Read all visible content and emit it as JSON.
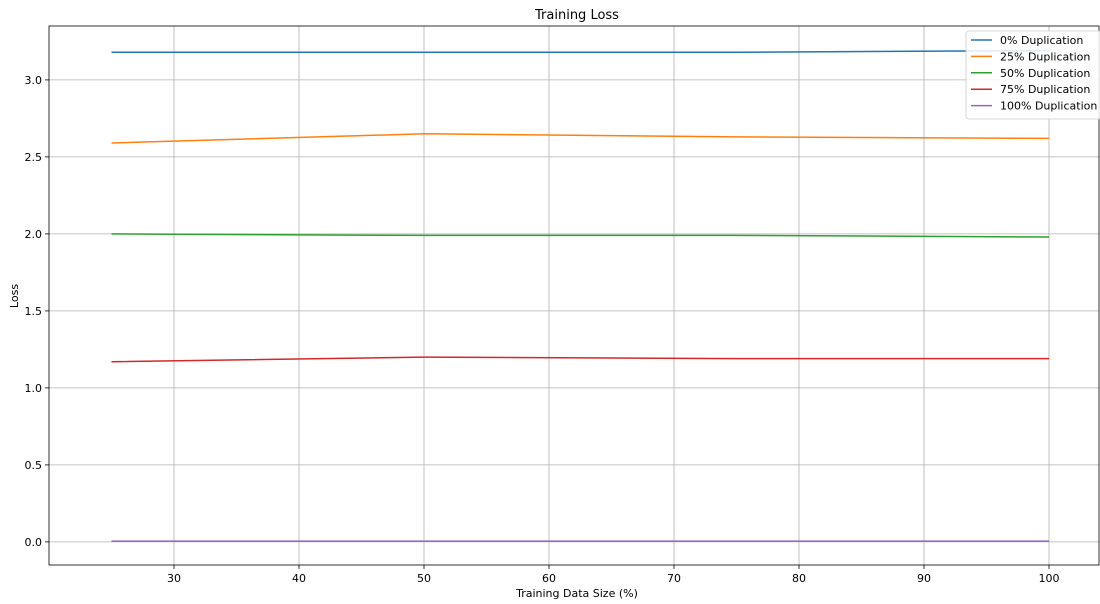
{
  "chart_data": {
    "type": "line",
    "title": "Training Loss",
    "xlabel": "Training Data Size (%)",
    "ylabel": "Loss",
    "xlim": [
      20,
      104
    ],
    "ylim": [
      -0.15,
      3.35
    ],
    "xticks": [
      30,
      40,
      50,
      60,
      70,
      80,
      90,
      100
    ],
    "yticks": [
      0.0,
      0.5,
      1.0,
      1.5,
      2.0,
      2.5,
      3.0
    ],
    "xtick_labels": [
      "30",
      "40",
      "50",
      "60",
      "70",
      "80",
      "90",
      "100"
    ],
    "ytick_labels": [
      "0.0",
      "0.5",
      "1.0",
      "1.5",
      "2.0",
      "2.5",
      "3.0"
    ],
    "grid": true,
    "legend_position": "top-right",
    "x": [
      25,
      50,
      75,
      100
    ],
    "series": [
      {
        "name": "0% Duplication",
        "color": "#1f77b4",
        "values": [
          3.18,
          3.18,
          3.18,
          3.19
        ]
      },
      {
        "name": "25% Duplication",
        "color": "#ff7f0e",
        "values": [
          2.59,
          2.65,
          2.63,
          2.62
        ]
      },
      {
        "name": "50% Duplication",
        "color": "#2ca02c",
        "values": [
          2.0,
          1.99,
          1.99,
          1.98
        ]
      },
      {
        "name": "75% Duplication",
        "color": "#d62728",
        "values": [
          1.17,
          1.2,
          1.19,
          1.19
        ]
      },
      {
        "name": "100% Duplication",
        "color": "#9467bd",
        "values": [
          0.005,
          0.005,
          0.005,
          0.005
        ]
      }
    ]
  }
}
